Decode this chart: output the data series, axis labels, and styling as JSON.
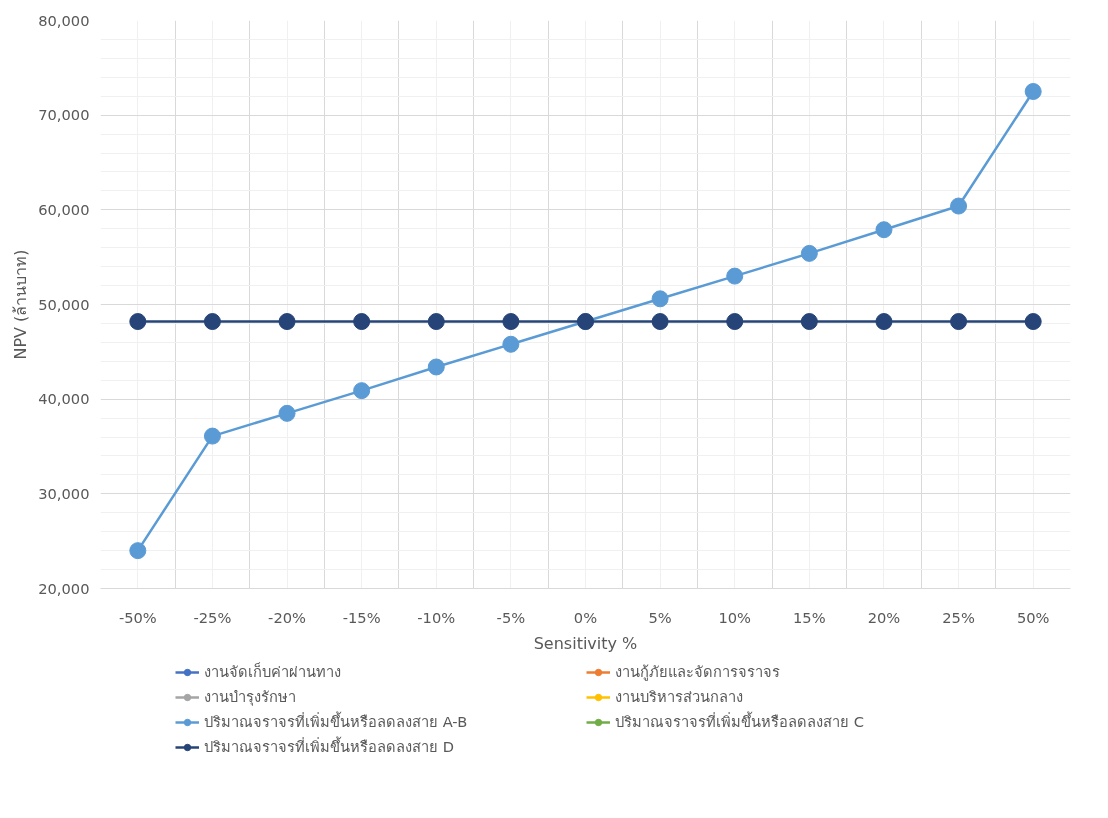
{
  "chart_data": {
    "type": "line",
    "xlabel": "Sensitivity %",
    "ylabel": "NPV (ล้านบาท)",
    "categories": [
      "-50%",
      "-25%",
      "-20%",
      "-15%",
      "-10%",
      "-5%",
      "0%",
      "5%",
      "10%",
      "15%",
      "20%",
      "25%",
      "50%"
    ],
    "series": [
      {
        "name": "งานจัดเก็บค่าผ่านทาง",
        "color": "#4472c4",
        "values": [
          null,
          null,
          null,
          null,
          null,
          null,
          null,
          null,
          null,
          null,
          null,
          null,
          null
        ]
      },
      {
        "name": "งานกู้ภัยและจัดการจราจร",
        "color": "#ed7d31",
        "values": [
          null,
          null,
          null,
          null,
          null,
          null,
          null,
          null,
          null,
          null,
          null,
          null,
          null
        ]
      },
      {
        "name": "งานบำรุงรักษา",
        "color": "#a5a5a5",
        "values": [
          null,
          null,
          null,
          null,
          null,
          null,
          null,
          null,
          null,
          null,
          null,
          null,
          null
        ]
      },
      {
        "name": "งานบริหารส่วนกลาง",
        "color": "#ffc000",
        "values": [
          null,
          null,
          null,
          null,
          null,
          null,
          null,
          null,
          null,
          null,
          null,
          null,
          null
        ]
      },
      {
        "name": "ปริมาณจราจรที่เพิ่มขึ้นหรือลดลงสาย A-B",
        "color": "#5b9bd5",
        "values": [
          24000,
          36100,
          38500,
          40900,
          43400,
          45800,
          48200,
          50600,
          53000,
          55400,
          57900,
          60400,
          72500
        ]
      },
      {
        "name": "ปริมาณจราจรที่เพิ่มขึ้นหรือลดลงสาย C",
        "color": "#70ad47",
        "values": [
          null,
          null,
          null,
          null,
          null,
          null,
          null,
          null,
          null,
          null,
          null,
          null,
          null
        ]
      },
      {
        "name": "ปริมาณจราจรที่เพิ่มขึ้นหรือลดลงสาย D",
        "color": "#264478",
        "values": [
          48200,
          48200,
          48200,
          48200,
          48200,
          48200,
          48200,
          48200,
          48200,
          48200,
          48200,
          48200,
          48200
        ]
      }
    ],
    "ylim": [
      20000,
      80000
    ],
    "yticks": [
      {
        "value": 20000,
        "label": "20,000"
      },
      {
        "value": 30000,
        "label": "30,000"
      },
      {
        "value": 40000,
        "label": "40,000"
      },
      {
        "value": 50000,
        "label": "50,000"
      },
      {
        "value": 60000,
        "label": "60,000"
      },
      {
        "value": 70000,
        "label": "70,000"
      },
      {
        "value": 80000,
        "label": "80,000"
      }
    ],
    "grid": true,
    "legend": "bottom",
    "marker": "circle",
    "line_style": "solid"
  }
}
